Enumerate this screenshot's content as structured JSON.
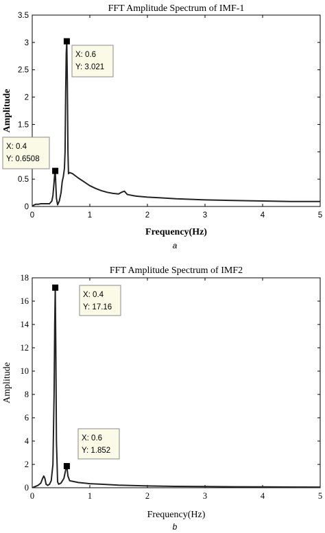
{
  "chart_data": [
    {
      "type": "line",
      "panel_label": "a",
      "title": "FFT Amplitude Spectrum of IMF-1",
      "xlabel": "Frequency(Hz)",
      "ylabel": "Amplitude",
      "xlim": [
        0,
        5
      ],
      "ylim": [
        0,
        3.5
      ],
      "xticks": [
        0,
        1,
        2,
        3,
        4,
        5
      ],
      "xtick_labels": [
        "0",
        "1",
        "2",
        "3",
        "4",
        "5"
      ],
      "yticks": [
        0,
        0.5,
        1,
        1.5,
        2,
        2.5,
        3,
        3.5
      ],
      "ytick_labels": [
        "0",
        "0.5",
        "1",
        "1.5",
        "2",
        "2.5",
        "3",
        "3.5"
      ],
      "grid": false,
      "series": [
        {
          "x": [
            0,
            0.02,
            0.06,
            0.1,
            0.15,
            0.2,
            0.25,
            0.3,
            0.34,
            0.36,
            0.38,
            0.39,
            0.4,
            0.41,
            0.42,
            0.44,
            0.47,
            0.5,
            0.52,
            0.54,
            0.56,
            0.57,
            0.58,
            0.59,
            0.6,
            0.61,
            0.62,
            0.63,
            0.65,
            0.7,
            0.8,
            0.9,
            1.0,
            1.1,
            1.2,
            1.3,
            1.4,
            1.5,
            1.55,
            1.6,
            1.65,
            1.7,
            1.8,
            2.0,
            2.2,
            2.5,
            3.0,
            3.5,
            4.0,
            4.5,
            5.0
          ],
          "y": [
            0.0,
            0.02,
            0.04,
            0.04,
            0.05,
            0.05,
            0.05,
            0.05,
            0.1,
            0.2,
            0.45,
            0.6,
            0.6508,
            0.4,
            0.15,
            0.03,
            0.1,
            0.25,
            0.45,
            0.55,
            0.7,
            1.0,
            2.0,
            2.8,
            3.021,
            2.3,
            1.0,
            0.6,
            0.62,
            0.6,
            0.52,
            0.45,
            0.38,
            0.33,
            0.29,
            0.26,
            0.24,
            0.23,
            0.26,
            0.28,
            0.22,
            0.21,
            0.19,
            0.17,
            0.16,
            0.14,
            0.12,
            0.11,
            0.1,
            0.09,
            0.09
          ]
        }
      ],
      "annotations": [
        {
          "x": 0.6,
          "y": 3.021,
          "label_x": "X: 0.6",
          "label_y": "Y: 3.021"
        },
        {
          "x": 0.4,
          "y": 0.6508,
          "label_x": "X: 0.4",
          "label_y": "Y: 0.6508"
        }
      ]
    },
    {
      "type": "line",
      "panel_label": "b",
      "title": "FFT Amplitude Spectrum of IMF2",
      "xlabel": "Frequency(Hz)",
      "ylabel": "Amplitude",
      "xlim": [
        0,
        5
      ],
      "ylim": [
        0,
        18
      ],
      "xticks": [
        0,
        1,
        2,
        3,
        4,
        5
      ],
      "xtick_labels": [
        "0",
        "1",
        "2",
        "3",
        "4",
        "5"
      ],
      "yticks": [
        0,
        2,
        4,
        6,
        8,
        10,
        12,
        14,
        16,
        18
      ],
      "ytick_labels": [
        "0",
        "2",
        "4",
        "6",
        "8",
        "10",
        "12",
        "14",
        "16",
        "18"
      ],
      "grid": false,
      "series": [
        {
          "x": [
            0,
            0.05,
            0.1,
            0.15,
            0.18,
            0.2,
            0.22,
            0.24,
            0.27,
            0.3,
            0.33,
            0.36,
            0.38,
            0.39,
            0.4,
            0.41,
            0.42,
            0.44,
            0.46,
            0.5,
            0.55,
            0.58,
            0.6,
            0.62,
            0.65,
            0.7,
            0.8,
            1.0,
            1.2,
            1.5,
            2.0,
            2.5,
            3.0,
            3.5,
            4.0,
            4.5,
            5.0
          ],
          "y": [
            0.0,
            0.1,
            0.2,
            0.4,
            0.8,
            1.0,
            0.8,
            0.3,
            0.2,
            0.3,
            0.6,
            2.0,
            8.0,
            14.0,
            17.16,
            12.0,
            4.0,
            0.5,
            0.3,
            0.4,
            0.8,
            1.5,
            1.852,
            1.0,
            0.6,
            0.55,
            0.45,
            0.35,
            0.3,
            0.22,
            0.15,
            0.12,
            0.1,
            0.08,
            0.07,
            0.06,
            0.05
          ]
        }
      ],
      "annotations": [
        {
          "x": 0.4,
          "y": 17.16,
          "label_x": "X: 0.4",
          "label_y": "Y: 17.16"
        },
        {
          "x": 0.6,
          "y": 1.852,
          "label_x": "X: 0.6",
          "label_y": "Y: 1.852"
        }
      ]
    }
  ]
}
